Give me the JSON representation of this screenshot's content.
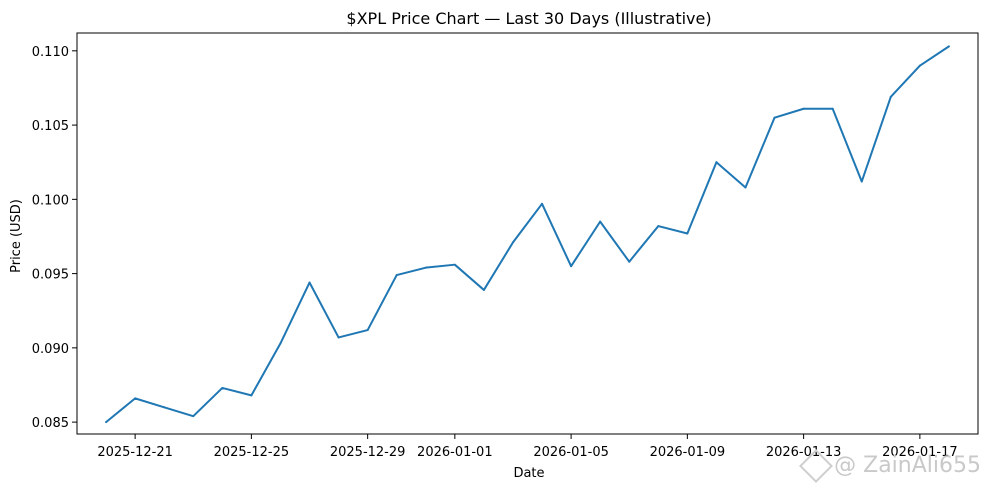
{
  "chart_data": {
    "type": "line",
    "title": "$XPL Price Chart — Last 30 Days (Illustrative)",
    "xlabel": "Date",
    "ylabel": "Price (USD)",
    "xlim": [
      "2025-12-19",
      "2026-01-19"
    ],
    "ylim": [
      0.0842,
      0.1112
    ],
    "grid": false,
    "x_ticks": [
      "2025-12-21",
      "2025-12-25",
      "2025-12-29",
      "2026-01-01",
      "2026-01-05",
      "2026-01-09",
      "2026-01-13",
      "2026-01-17"
    ],
    "y_ticks": [
      "0.085",
      "0.090",
      "0.095",
      "0.100",
      "0.105",
      "0.110"
    ],
    "color": "#1f77b4",
    "x": [
      "2025-12-20",
      "2025-12-21",
      "2025-12-22",
      "2025-12-23",
      "2025-12-24",
      "2025-12-25",
      "2025-12-26",
      "2025-12-27",
      "2025-12-28",
      "2025-12-29",
      "2025-12-30",
      "2025-12-31",
      "2026-01-01",
      "2026-01-02",
      "2026-01-03",
      "2026-01-04",
      "2026-01-05",
      "2026-01-06",
      "2026-01-07",
      "2026-01-08",
      "2026-01-09",
      "2026-01-10",
      "2026-01-11",
      "2026-01-12",
      "2026-01-13",
      "2026-01-14",
      "2026-01-15",
      "2026-01-16",
      "2026-01-17",
      "2026-01-18"
    ],
    "values": [
      0.085,
      0.0866,
      0.086,
      0.0854,
      0.0873,
      0.0868,
      0.0903,
      0.0944,
      0.0907,
      0.0912,
      0.0949,
      0.0954,
      0.0956,
      0.0939,
      0.0971,
      0.0997,
      0.0955,
      0.0985,
      0.0958,
      0.0982,
      0.0977,
      0.1025,
      0.1008,
      0.1055,
      0.1061,
      0.1061,
      0.1012,
      0.1069,
      0.109,
      0.1103
    ]
  },
  "watermark": {
    "text": "@ ZainAli655",
    "icon": "binance-diamond-icon"
  }
}
